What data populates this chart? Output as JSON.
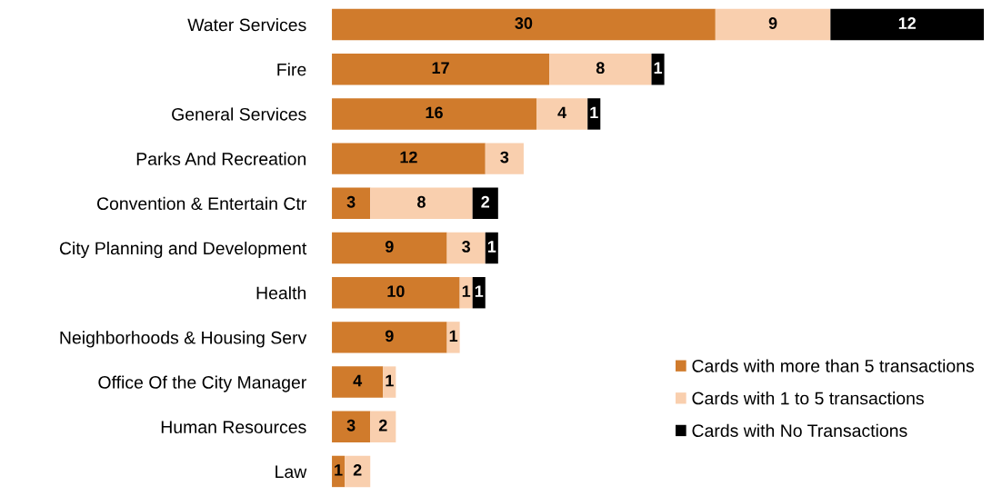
{
  "chart_data": {
    "type": "bar",
    "orientation": "horizontal",
    "stacked": true,
    "data_labels": true,
    "tick_labels": "y",
    "grid": false,
    "legend": "bottom right",
    "xlim": [
      0,
      51
    ],
    "categories": [
      "Water Services",
      "Fire",
      "General Services",
      "Parks And Recreation",
      "Convention & Entertain Ctr",
      "City Planning and Development",
      "Health",
      "Neighborhoods & Housing Serv",
      "Office Of the City Manager",
      "Human Resources",
      "Law"
    ],
    "series": [
      {
        "name": "Cards with more than 5 transactions",
        "color": "#d07b2c",
        "values": [
          30,
          17,
          16,
          12,
          3,
          9,
          10,
          9,
          4,
          3,
          1
        ]
      },
      {
        "name": "Cards with 1 to 5 transactions",
        "color": "#f9cfae",
        "values": [
          9,
          8,
          4,
          3,
          8,
          3,
          1,
          1,
          1,
          2,
          2
        ]
      },
      {
        "name": "Cards with No Transactions",
        "color": "#000000",
        "values": [
          12,
          1,
          1,
          null,
          2,
          1,
          1,
          null,
          null,
          null,
          null
        ]
      }
    ]
  }
}
